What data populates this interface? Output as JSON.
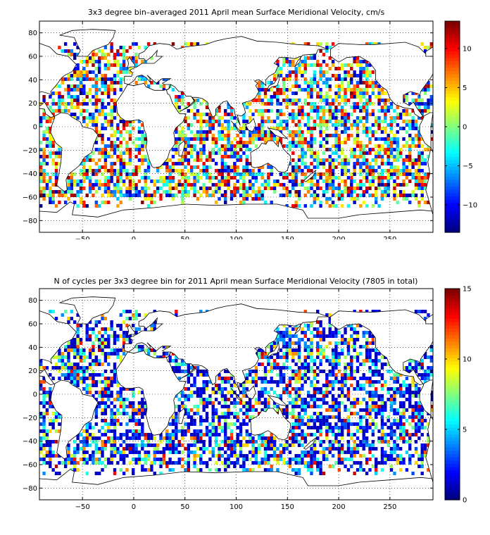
{
  "chart_data": [
    {
      "type": "heatmap",
      "title": "3x3 degree bin–averaged 2011 April mean Surface Meridional Velocity, cm/s",
      "xlim": [
        -92,
        292
      ],
      "ylim": [
        -90,
        90
      ],
      "xticks": [
        -50,
        0,
        50,
        100,
        150,
        200,
        250
      ],
      "yticks": [
        -80,
        -60,
        -40,
        -20,
        0,
        20,
        40,
        60,
        80
      ],
      "grid": true,
      "grid_style": "dotted",
      "bin_size_deg": 3,
      "colorbar": {
        "range": [
          -13.5,
          13.5
        ],
        "ticks": [
          -10,
          -5,
          0,
          5,
          10
        ],
        "colormap": "jet"
      },
      "value_distribution": "random signed values, roughly uniform across the range, covering most ocean bins between about -65 and 70 latitude"
    },
    {
      "type": "heatmap",
      "title": "N of cycles per 3x3 degree bin for 2011 April mean Surface Meridional Velocity (7805 in total)",
      "xlim": [
        -92,
        292
      ],
      "ylim": [
        -90,
        90
      ],
      "xticks": [
        -50,
        0,
        50,
        100,
        150,
        200,
        250
      ],
      "yticks": [
        -80,
        -60,
        -40,
        -20,
        0,
        20,
        40,
        60,
        80
      ],
      "grid": true,
      "grid_style": "dotted",
      "bin_size_deg": 3,
      "colorbar": {
        "range": [
          0,
          15
        ],
        "ticks": [
          0,
          5,
          10,
          15
        ],
        "colormap": "jet"
      },
      "value_distribution": "mostly low counts (1-5), occasional higher counts up to 15 near marginal seas; same bin coverage as the top panel"
    }
  ]
}
